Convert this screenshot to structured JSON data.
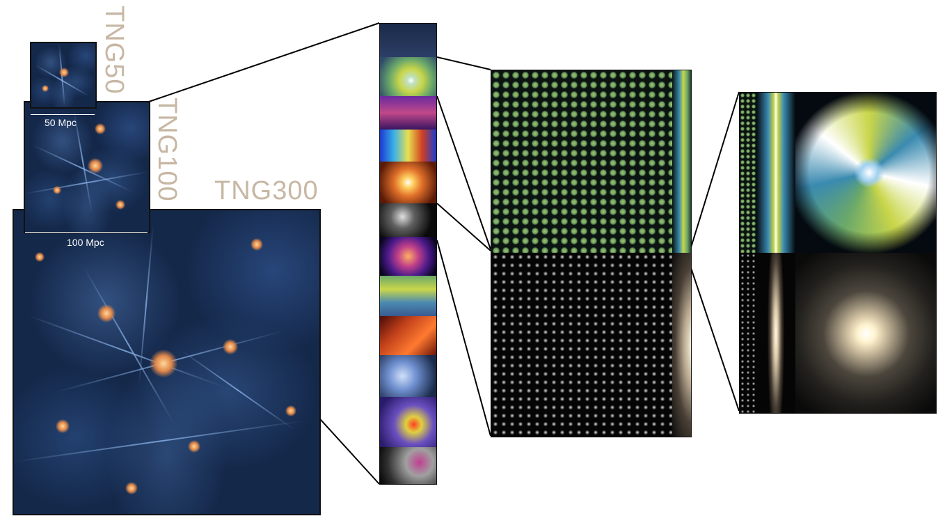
{
  "labels": {
    "tng50": "TNG50",
    "tng100": "TNG100",
    "tng300": "TNG300"
  },
  "scale_bars": {
    "tng50": "50 Mpc",
    "tng100": "100 Mpc"
  },
  "colors": {
    "label": "#c7b7a3",
    "background": "#14284a",
    "knot": "#e0884a",
    "outline": "#111111"
  }
}
